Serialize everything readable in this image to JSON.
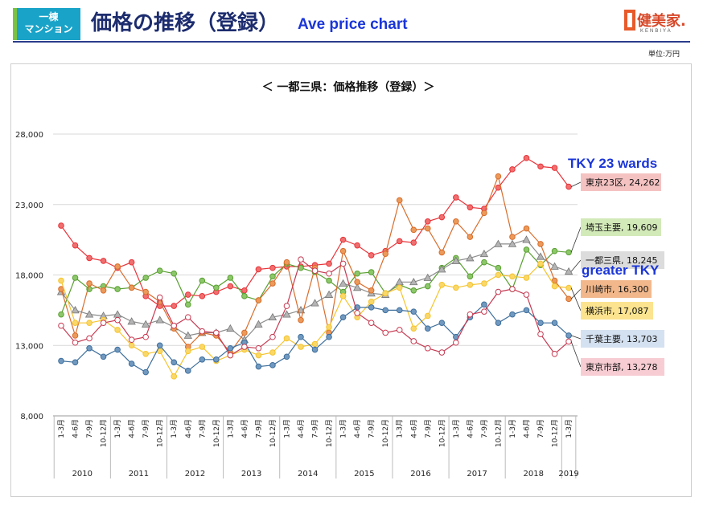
{
  "header": {
    "badge_line1": "一棟",
    "badge_line2": "マンション",
    "title": "価格の推移（登録）",
    "subtitle": "Ave price chart",
    "logo": "健美家.",
    "logo_sub": "KENBIYA",
    "unit": "単位:万円"
  },
  "annotations": {
    "tky23": "TKY 23 wards",
    "greater": "greater TKY"
  },
  "chart_data": {
    "type": "line",
    "title": "＜ 一都三県：価格推移（登録）＞",
    "ylim": [
      8000,
      28000
    ],
    "yticks": [
      "8,000",
      "13,000",
      "18,000",
      "23,000",
      "28,000"
    ],
    "xlabels": [
      "1-3月",
      "4-6月",
      "7-9月",
      "10-12月",
      "1-3月",
      "4-6月",
      "7-9月",
      "10-12月",
      "1-3月",
      "4-6月",
      "7-9月",
      "10-12月",
      "1-3月",
      "4-6月",
      "7-9月",
      "10-12月",
      "1-3月",
      "4-6月",
      "7-9月",
      "10-12月",
      "1-3月",
      "4-6月",
      "7-9月",
      "10-12月",
      "1-3月",
      "4-6月",
      "7-9月",
      "10-12月",
      "1-3月",
      "4-6月",
      "7-9月",
      "10-12月",
      "1-3月",
      "4-6月",
      "7-9月",
      "10-12月",
      "1-3月"
    ],
    "years": [
      {
        "label": "2010",
        "count": 4
      },
      {
        "label": "2011",
        "count": 4
      },
      {
        "label": "2012",
        "count": 4
      },
      {
        "label": "2013",
        "count": 4
      },
      {
        "label": "2014",
        "count": 4
      },
      {
        "label": "2015",
        "count": 4
      },
      {
        "label": "2016",
        "count": 4
      },
      {
        "label": "2017",
        "count": 4
      },
      {
        "label": "2018",
        "count": 4
      },
      {
        "label": "2019",
        "count": 1
      }
    ],
    "series": [
      {
        "name": "東京23区",
        "last": "24,262",
        "color": "#e8343a",
        "fill": "#f06f6f",
        "marker": "circle",
        "label_bg": "#f5c2c2",
        "values": [
          21500,
          20100,
          19200,
          19000,
          18500,
          18900,
          16500,
          15800,
          15800,
          16600,
          16500,
          16800,
          17200,
          16900,
          18400,
          18500,
          18600,
          18600,
          18700,
          18800,
          20500,
          20100,
          19400,
          19700,
          20400,
          20300,
          21800,
          22100,
          23500,
          22800,
          22700,
          24200,
          25500,
          26300,
          25700,
          25600,
          24262
        ]
      },
      {
        "name": "埼玉主要",
        "last": "19,609",
        "color": "#5aa032",
        "fill": "#8cc76a",
        "marker": "circle",
        "label_bg": "#d2e9b8",
        "values": [
          15200,
          17800,
          17000,
          17200,
          17000,
          17100,
          17800,
          18300,
          18100,
          15900,
          17600,
          17100,
          17800,
          16500,
          16200,
          17900,
          18800,
          18500,
          18200,
          17600,
          16800,
          18100,
          18200,
          16700,
          17300,
          16900,
          17200,
          18500,
          19200,
          17900,
          18900,
          18500,
          17000,
          19800,
          18700,
          19700,
          19609
        ]
      },
      {
        "name": "一都三県",
        "last": "18,245",
        "color": "#8c8c8c",
        "fill": "#b4b4b4",
        "marker": "triangle",
        "label_bg": "#dcdcdc",
        "values": [
          16800,
          15500,
          15200,
          15100,
          15200,
          14700,
          14500,
          14800,
          14300,
          13700,
          13900,
          13900,
          14200,
          13400,
          14500,
          15000,
          15200,
          15500,
          16000,
          16600,
          17400,
          17100,
          16700,
          16600,
          17500,
          17500,
          17800,
          18400,
          19000,
          19200,
          19500,
          20200,
          20200,
          20500,
          19300,
          18600,
          18245
        ]
      },
      {
        "name": "川崎市",
        "last": "16,300",
        "color": "#d86d2c",
        "fill": "#ec9a5a",
        "marker": "circle",
        "label_bg": "#f2b88c",
        "values": [
          17000,
          13700,
          17400,
          16900,
          18600,
          17100,
          16800,
          16100,
          14200,
          12900,
          13900,
          13700,
          12500,
          13900,
          16200,
          17400,
          18900,
          14800,
          18500,
          13900,
          19700,
          17500,
          16900,
          19500,
          23300,
          21200,
          21300,
          19600,
          21800,
          20700,
          22400,
          25000,
          20700,
          21300,
          20200,
          17600,
          16300
        ]
      },
      {
        "name": "横浜市",
        "last": "17,087",
        "color": "#f5c430",
        "fill": "#fad868",
        "marker": "circle",
        "label_bg": "#fbe38f",
        "values": [
          17600,
          14600,
          14600,
          14800,
          14100,
          13000,
          12400,
          12600,
          10800,
          12600,
          12900,
          11900,
          12300,
          12700,
          12300,
          12500,
          13500,
          12900,
          13100,
          14300,
          16500,
          15000,
          16100,
          16700,
          17100,
          14200,
          15100,
          17300,
          17100,
          17300,
          17400,
          18000,
          17900,
          17800,
          18800,
          17200,
          17087
        ]
      },
      {
        "name": "千葉主要",
        "last": "13,703",
        "color": "#3e6f9c",
        "fill": "#7199c0",
        "marker": "circle",
        "label_bg": "#d4e1f0",
        "values": [
          11900,
          11800,
          12800,
          12200,
          12700,
          11700,
          11100,
          13000,
          11800,
          11200,
          12000,
          12000,
          12800,
          13200,
          11500,
          11600,
          12200,
          13600,
          12700,
          13600,
          15000,
          15700,
          15700,
          15500,
          15500,
          15400,
          14200,
          14600,
          13600,
          15000,
          15900,
          14600,
          15200,
          15500,
          14600,
          14600,
          13703
        ]
      },
      {
        "name": "東京市部",
        "last": "13,278",
        "color": "#c63a52",
        "fill": "#ffffff",
        "marker": "ring",
        "label_bg": "#f7cdd3",
        "values": [
          14400,
          13200,
          13500,
          14600,
          14800,
          13400,
          13600,
          16400,
          14400,
          15000,
          14000,
          13900,
          12300,
          12900,
          12800,
          13600,
          15800,
          19100,
          18300,
          18100,
          18800,
          15300,
          14600,
          13900,
          14100,
          13300,
          12800,
          12500,
          13200,
          15200,
          15400,
          16800,
          17000,
          16600,
          13800,
          12400,
          13278
        ]
      }
    ]
  }
}
